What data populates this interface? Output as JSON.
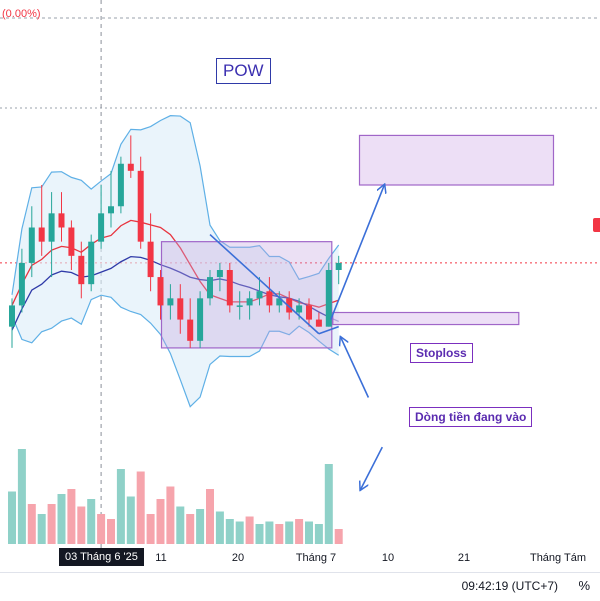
{
  "title": "POW",
  "top_change": "(0.00%)",
  "annotations": {
    "stoploss": "Stoploss",
    "money_flow": "Dòng tiền đang vào"
  },
  "time_axis": {
    "highlighted": "03 Tháng 6 '25",
    "ticks": [
      "11",
      "20",
      "Tháng 7",
      "10",
      "21",
      "Tháng Tám"
    ]
  },
  "status_bar": {
    "clock": "09:42:19 (UTC+7)",
    "percent_button": "%"
  },
  "colors": {
    "up": "#26a69a",
    "down": "#f23645",
    "volume_up": "#8fd1c8",
    "volume_down": "#f6a4ac",
    "bollinger": "#5fb0e6",
    "bollinger_fill": "#dcecf8",
    "ma": "#e8343f",
    "ma_slow": "#2f3aa8",
    "zone": "#a066c8",
    "arrow": "#3b6fd8"
  },
  "chart_data": {
    "type": "candlestick",
    "title": "POW",
    "xlabel": "",
    "ylabel": "",
    "x_ticks": [
      "03 Tháng 6 '25",
      "11",
      "20",
      "Tháng 7",
      "10",
      "21",
      "Tháng Tám"
    ],
    "ohlc": [
      {
        "o": 12.6,
        "h": 13.0,
        "l": 12.3,
        "c": 12.9
      },
      {
        "o": 12.9,
        "h": 13.7,
        "l": 12.8,
        "c": 13.5
      },
      {
        "o": 13.5,
        "h": 14.3,
        "l": 13.3,
        "c": 14.0
      },
      {
        "o": 14.0,
        "h": 14.6,
        "l": 13.6,
        "c": 13.8
      },
      {
        "o": 13.8,
        "h": 14.5,
        "l": 13.3,
        "c": 14.2
      },
      {
        "o": 14.2,
        "h": 14.5,
        "l": 13.8,
        "c": 14.0
      },
      {
        "o": 14.0,
        "h": 14.1,
        "l": 13.4,
        "c": 13.6
      },
      {
        "o": 13.6,
        "h": 13.8,
        "l": 13.0,
        "c": 13.2
      },
      {
        "o": 13.2,
        "h": 13.9,
        "l": 13.1,
        "c": 13.8
      },
      {
        "o": 13.8,
        "h": 14.6,
        "l": 13.7,
        "c": 14.2
      },
      {
        "o": 14.2,
        "h": 14.8,
        "l": 14.0,
        "c": 14.3
      },
      {
        "o": 14.3,
        "h": 15.0,
        "l": 14.2,
        "c": 14.9
      },
      {
        "o": 14.9,
        "h": 15.3,
        "l": 14.7,
        "c": 14.8
      },
      {
        "o": 14.8,
        "h": 15.0,
        "l": 13.7,
        "c": 13.8
      },
      {
        "o": 13.8,
        "h": 14.2,
        "l": 13.1,
        "c": 13.3
      },
      {
        "o": 13.3,
        "h": 13.4,
        "l": 12.7,
        "c": 12.9
      },
      {
        "o": 12.9,
        "h": 13.2,
        "l": 12.7,
        "c": 13.0
      },
      {
        "o": 13.0,
        "h": 13.2,
        "l": 12.5,
        "c": 12.7
      },
      {
        "o": 12.7,
        "h": 13.0,
        "l": 12.3,
        "c": 12.4
      },
      {
        "o": 12.4,
        "h": 13.1,
        "l": 12.3,
        "c": 13.0
      },
      {
        "o": 13.0,
        "h": 13.4,
        "l": 12.9,
        "c": 13.3
      },
      {
        "o": 13.3,
        "h": 13.5,
        "l": 13.1,
        "c": 13.4
      },
      {
        "o": 13.4,
        "h": 13.5,
        "l": 12.8,
        "c": 12.9
      },
      {
        "o": 12.9,
        "h": 13.1,
        "l": 12.7,
        "c": 12.9
      },
      {
        "o": 12.9,
        "h": 13.1,
        "l": 12.7,
        "c": 13.0
      },
      {
        "o": 13.0,
        "h": 13.3,
        "l": 12.9,
        "c": 13.1
      },
      {
        "o": 13.1,
        "h": 13.3,
        "l": 12.8,
        "c": 12.9
      },
      {
        "o": 12.9,
        "h": 13.1,
        "l": 12.8,
        "c": 13.0
      },
      {
        "o": 13.0,
        "h": 13.1,
        "l": 12.7,
        "c": 12.8
      },
      {
        "o": 12.8,
        "h": 13.0,
        "l": 12.7,
        "c": 12.9
      },
      {
        "o": 12.9,
        "h": 13.0,
        "l": 12.6,
        "c": 12.7
      },
      {
        "o": 12.7,
        "h": 12.8,
        "l": 12.6,
        "c": 12.6
      },
      {
        "o": 12.6,
        "h": 13.5,
        "l": 12.6,
        "c": 13.4
      },
      {
        "o": 13.4,
        "h": 13.6,
        "l": 13.2,
        "c": 13.5
      }
    ],
    "volume": [
      {
        "v": 2.1,
        "up": true
      },
      {
        "v": 3.8,
        "up": true
      },
      {
        "v": 1.6,
        "up": false
      },
      {
        "v": 1.2,
        "up": true
      },
      {
        "v": 1.6,
        "up": false
      },
      {
        "v": 2.0,
        "up": true
      },
      {
        "v": 2.2,
        "up": false
      },
      {
        "v": 1.5,
        "up": false
      },
      {
        "v": 1.8,
        "up": true
      },
      {
        "v": 1.2,
        "up": false
      },
      {
        "v": 1.0,
        "up": false
      },
      {
        "v": 3.0,
        "up": true
      },
      {
        "v": 1.9,
        "up": true
      },
      {
        "v": 2.9,
        "up": false
      },
      {
        "v": 1.2,
        "up": false
      },
      {
        "v": 1.8,
        "up": false
      },
      {
        "v": 2.3,
        "up": false
      },
      {
        "v": 1.5,
        "up": true
      },
      {
        "v": 1.2,
        "up": false
      },
      {
        "v": 1.4,
        "up": true
      },
      {
        "v": 2.2,
        "up": false
      },
      {
        "v": 1.3,
        "up": true
      },
      {
        "v": 1.0,
        "up": true
      },
      {
        "v": 0.9,
        "up": true
      },
      {
        "v": 1.1,
        "up": false
      },
      {
        "v": 0.8,
        "up": true
      },
      {
        "v": 0.9,
        "up": true
      },
      {
        "v": 0.8,
        "up": false
      },
      {
        "v": 0.9,
        "up": true
      },
      {
        "v": 1.0,
        "up": false
      },
      {
        "v": 0.9,
        "up": true
      },
      {
        "v": 0.8,
        "up": true
      },
      {
        "v": 3.2,
        "up": true
      },
      {
        "v": 0.6,
        "up": false
      }
    ],
    "ylim": [
      11.0,
      15.8
    ],
    "volume_max": 4.0,
    "grid": false,
    "legend": "none"
  }
}
